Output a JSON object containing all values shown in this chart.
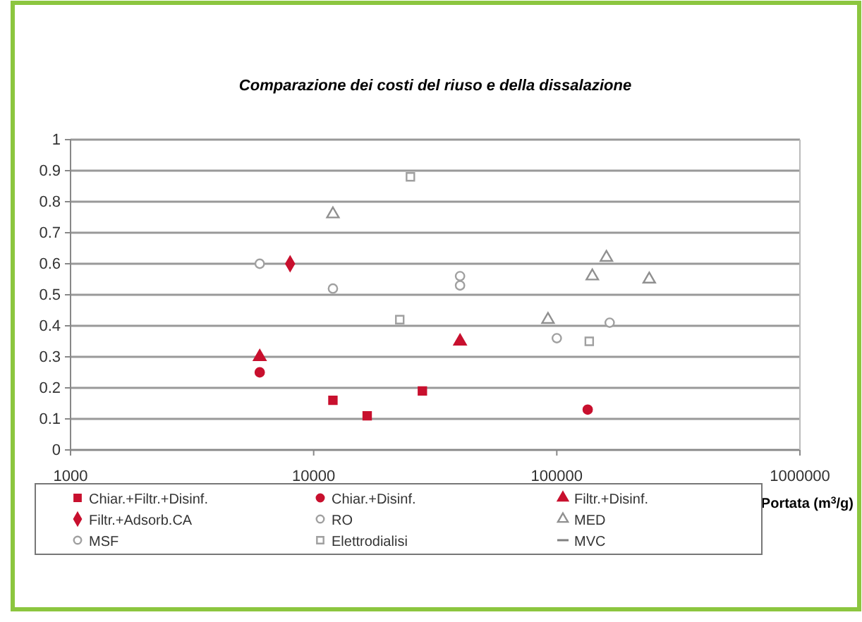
{
  "chart_data": {
    "type": "scatter",
    "title": "Comparazione dei costi del riuso e della dissalazione",
    "xlabel": "Portata (m$^{3}$/g)",
    "log": "x",
    "xlim": [
      1000,
      1000000
    ],
    "xticks": [
      1000,
      10000,
      100000,
      1000000
    ],
    "ylim": [
      0,
      1
    ],
    "yticks": [
      0,
      0.1,
      0.2,
      0.3,
      0.4,
      0.5,
      0.6,
      0.7,
      0.8,
      0.9,
      1
    ],
    "grid": "y",
    "legend": "bottom",
    "series": [
      {
        "name": "Chiar.+Filtr.+Disinf.",
        "color": "#c8102e",
        "marker": "square",
        "x": [
          12000,
          16600,
          28000
        ],
        "values": [
          0.16,
          0.11,
          0.19
        ]
      },
      {
        "name": "Chiar.+Disinf.",
        "color": "#c8102e",
        "marker": "circle",
        "x": [
          6000,
          134000
        ],
        "values": [
          0.25,
          0.13
        ]
      },
      {
        "name": "Filtr.+Disinf.",
        "color": "#c8102e",
        "marker": "triangle",
        "x": [
          6000,
          40000
        ],
        "values": [
          0.3,
          0.35
        ]
      },
      {
        "name": "Filtr.+Adsorb.CA",
        "color": "#c8102e",
        "marker": "diamond",
        "x": [
          8000
        ],
        "values": [
          0.6
        ]
      },
      {
        "name": "RO",
        "color": "#a0a0a0",
        "marker": "circle",
        "x": [
          12000,
          40000,
          40000,
          100000
        ],
        "values": [
          0.52,
          0.56,
          0.53,
          0.36
        ]
      },
      {
        "name": "MED",
        "color": "#909090",
        "marker": "triangle",
        "x": [
          12000,
          92000,
          140000,
          160000,
          240000
        ],
        "values": [
          0.76,
          0.42,
          0.56,
          0.62,
          0.55
        ]
      },
      {
        "name": "MSF",
        "color": "#a0a0a0",
        "marker": "circle",
        "x": [
          6000,
          165000
        ],
        "values": [
          0.6,
          0.41
        ]
      },
      {
        "name": "Elettrodialisi",
        "color": "#a0a0a0",
        "marker": "square",
        "x": [
          25000,
          22600,
          136000
        ],
        "values": [
          0.88,
          0.42,
          0.35
        ]
      },
      {
        "name": "MVC",
        "color": "#808080",
        "marker": "none"
      }
    ]
  }
}
